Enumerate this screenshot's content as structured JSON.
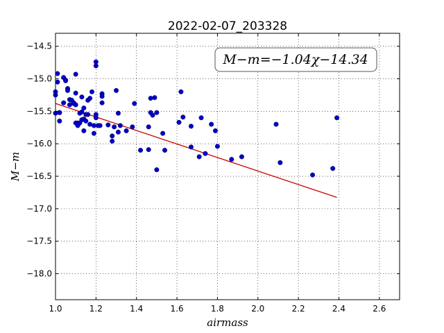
{
  "chart_data": {
    "type": "scatter",
    "title": "2022-02-07_203328",
    "xlabel": "airmass",
    "ylabel": "M−m",
    "xlim": [
      1.0,
      2.7
    ],
    "ylim": [
      -18.4,
      -14.3
    ],
    "xticks": [
      "1.0",
      "1.2",
      "1.4",
      "1.6",
      "1.8",
      "2.0",
      "2.2",
      "2.4",
      "2.6"
    ],
    "yticks": [
      "−14.5",
      "−15.0",
      "−15.5",
      "−16.0",
      "−16.5",
      "−17.0",
      "−17.5",
      "−18.0"
    ],
    "grid": true,
    "annotation": "M−m=−1.04χ−14.34",
    "fit_line": {
      "slope": -1.04,
      "intercept": -14.34,
      "x": [
        1.0,
        2.39
      ],
      "color": "#cc0000"
    },
    "point_color": "#0000cc",
    "x": [
      1.0,
      1.0,
      1.01,
      1.02,
      1.0,
      1.01,
      1.02,
      1.02,
      1.04,
      1.04,
      1.05,
      1.05,
      1.06,
      1.06,
      1.07,
      1.07,
      1.08,
      1.09,
      1.09,
      1.1,
      1.1,
      1.1,
      1.1,
      1.11,
      1.11,
      1.12,
      1.12,
      1.13,
      1.13,
      1.13,
      1.14,
      1.14,
      1.14,
      1.15,
      1.15,
      1.16,
      1.16,
      1.17,
      1.17,
      1.18,
      1.19,
      1.19,
      1.2,
      1.2,
      1.2,
      1.2,
      1.21,
      1.22,
      1.23,
      1.23,
      1.23,
      1.26,
      1.28,
      1.28,
      1.29,
      1.3,
      1.31,
      1.31,
      1.32,
      1.35,
      1.38,
      1.39,
      1.42,
      1.46,
      1.46,
      1.47,
      1.47,
      1.48,
      1.49,
      1.5,
      1.5,
      1.53,
      1.54,
      1.61,
      1.62,
      1.63,
      1.67,
      1.67,
      1.71,
      1.72,
      1.74,
      1.77,
      1.79,
      1.8,
      1.87,
      1.92,
      2.09,
      2.11,
      2.27,
      2.37,
      2.39
    ],
    "y": [
      -15.25,
      -15.2,
      -14.92,
      -15.52,
      -15.53,
      -15.05,
      -15.52,
      -15.65,
      -15.37,
      -14.98,
      -15.02,
      -15.03,
      -15.15,
      -15.18,
      -15.32,
      -15.4,
      -15.33,
      -15.37,
      -15.38,
      -14.93,
      -15.22,
      -15.4,
      -15.68,
      -15.68,
      -15.72,
      -15.68,
      -15.53,
      -15.28,
      -15.51,
      -15.63,
      -15.45,
      -15.62,
      -15.8,
      -15.55,
      -15.65,
      -15.33,
      -15.55,
      -15.3,
      -15.7,
      -15.2,
      -15.84,
      -15.72,
      -14.74,
      -14.8,
      -15.6,
      -15.55,
      -15.72,
      -15.72,
      -15.23,
      -15.27,
      -15.37,
      -15.71,
      -15.88,
      -15.96,
      -15.74,
      -15.18,
      -15.82,
      -15.53,
      -15.72,
      -15.8,
      -15.74,
      -15.38,
      -16.1,
      -15.74,
      -16.09,
      -15.3,
      -15.52,
      -15.56,
      -15.29,
      -15.52,
      -16.4,
      -15.84,
      -16.1,
      -15.67,
      -15.2,
      -15.59,
      -15.73,
      -16.05,
      -16.2,
      -15.6,
      -16.15,
      -15.7,
      -15.8,
      -16.04,
      -16.24,
      -16.2,
      -15.7,
      -16.29,
      -16.48,
      -16.38,
      -15.6
    ]
  }
}
